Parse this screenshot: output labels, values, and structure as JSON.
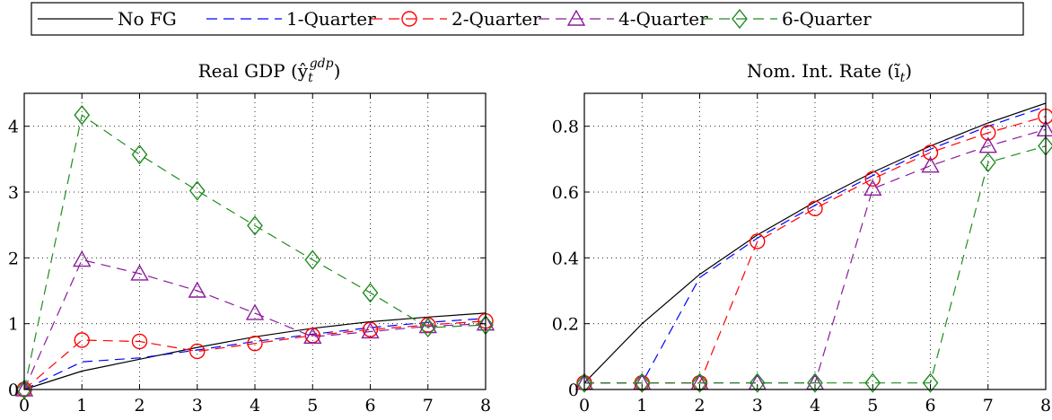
{
  "legend": {
    "entries": [
      {
        "label": "No FG",
        "color": "#000000",
        "dash": "solid",
        "marker": "none"
      },
      {
        "label": "1-Quarter",
        "color": "#0000ff",
        "dash": "dashed",
        "marker": "none"
      },
      {
        "label": "2-Quarter",
        "color": "#ff0000",
        "dash": "dashed",
        "marker": "circle"
      },
      {
        "label": "4-Quarter",
        "color": "#8b1a9b",
        "dash": "dashed",
        "marker": "triangle"
      },
      {
        "label": "6-Quarter",
        "color": "#1e8c1e",
        "dash": "dashed",
        "marker": "diamond"
      }
    ]
  },
  "chart_data": [
    {
      "type": "line",
      "title": "Real GDP (ŷ",
      "title_sub": "t",
      "title_sup": "gdp",
      "title_end": ")",
      "x": [
        0,
        1,
        2,
        3,
        4,
        5,
        6,
        7,
        8
      ],
      "xlim": [
        0,
        8
      ],
      "ylim": [
        0,
        4.5
      ],
      "xticks": [
        0,
        1,
        2,
        3,
        4,
        5,
        6,
        7,
        8
      ],
      "yticks": [
        0,
        1,
        2,
        3,
        4
      ],
      "grid": true,
      "series": [
        {
          "name": "No FG",
          "values": [
            0,
            0.28,
            0.46,
            0.64,
            0.8,
            0.93,
            1.03,
            1.1,
            1.16
          ]
        },
        {
          "name": "1-Quarter",
          "values": [
            0,
            0.42,
            0.48,
            0.6,
            0.73,
            0.84,
            0.94,
            1.02,
            1.08
          ]
        },
        {
          "name": "2-Quarter",
          "values": [
            0,
            0.75,
            0.73,
            0.58,
            0.7,
            0.82,
            0.91,
            0.98,
            1.04
          ]
        },
        {
          "name": "4-Quarter",
          "values": [
            0,
            1.97,
            1.76,
            1.5,
            1.16,
            0.8,
            0.88,
            0.96,
            1.0
          ]
        },
        {
          "name": "6-Quarter",
          "values": [
            0,
            4.17,
            3.57,
            3.02,
            2.49,
            1.97,
            1.47,
            0.94,
            0.98
          ]
        }
      ]
    },
    {
      "type": "line",
      "title": "Nom. Int. Rate (ĩ",
      "title_sub": "t",
      "title_sup": "",
      "title_end": ")",
      "x": [
        0,
        1,
        2,
        3,
        4,
        5,
        6,
        7,
        8
      ],
      "xlim": [
        0,
        8
      ],
      "ylim": [
        0,
        0.9
      ],
      "xticks": [
        0,
        1,
        2,
        3,
        4,
        5,
        6,
        7,
        8
      ],
      "yticks": [
        0,
        0.2,
        0.4,
        0.6,
        0.8
      ],
      "grid": true,
      "series": [
        {
          "name": "No FG",
          "values": [
            0.02,
            0.2,
            0.35,
            0.47,
            0.57,
            0.66,
            0.74,
            0.81,
            0.87
          ]
        },
        {
          "name": "1-Quarter",
          "values": [
            0.02,
            0.02,
            0.34,
            0.46,
            0.56,
            0.65,
            0.73,
            0.8,
            0.86
          ]
        },
        {
          "name": "2-Quarter",
          "values": [
            0.02,
            0.02,
            0.02,
            0.45,
            0.55,
            0.64,
            0.72,
            0.78,
            0.83
          ]
        },
        {
          "name": "4-Quarter",
          "values": [
            0.02,
            0.02,
            0.02,
            0.02,
            0.02,
            0.61,
            0.68,
            0.74,
            0.79
          ]
        },
        {
          "name": "6-Quarter",
          "values": [
            0.02,
            0.02,
            0.02,
            0.02,
            0.02,
            0.02,
            0.02,
            0.69,
            0.74
          ]
        }
      ]
    }
  ]
}
